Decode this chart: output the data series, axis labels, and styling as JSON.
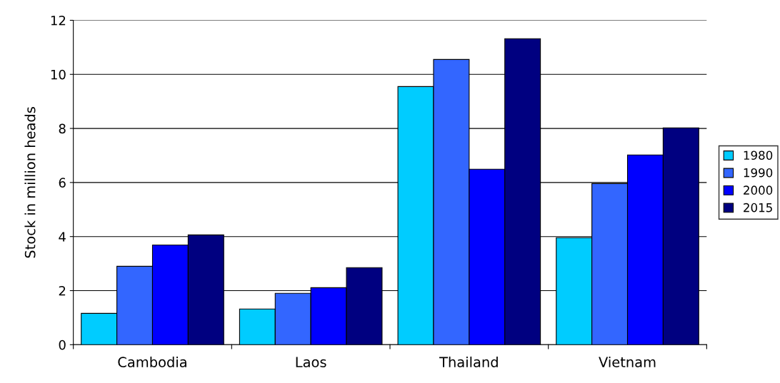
{
  "chart_data": {
    "type": "bar",
    "ylabel": "Stock in million heads",
    "categories": [
      "Cambodia",
      "Laos",
      "Thailand",
      "Vietnam"
    ],
    "series": [
      {
        "name": "1980",
        "color": "#00ccff",
        "values": [
          1.16,
          1.32,
          9.55,
          3.96
        ]
      },
      {
        "name": "1990",
        "color": "#3366ff",
        "values": [
          2.9,
          1.9,
          10.55,
          5.96
        ]
      },
      {
        "name": "2000",
        "color": "#0000ff",
        "values": [
          3.69,
          2.11,
          6.49,
          7.02
        ]
      },
      {
        "name": "2015",
        "color": "#000080",
        "values": [
          4.06,
          2.85,
          11.32,
          8.02
        ]
      }
    ],
    "ylim": [
      0,
      12
    ],
    "yticks": [
      0,
      2,
      4,
      6,
      8,
      10,
      12
    ],
    "grid": "y",
    "legend": "right"
  }
}
